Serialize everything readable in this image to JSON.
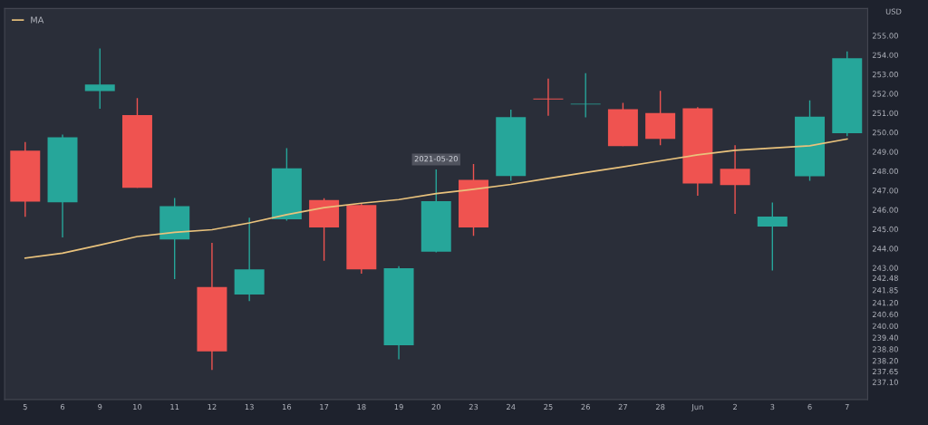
{
  "chart_data": {
    "type": "candlestick",
    "ylabel": "USD",
    "categories": [
      "5",
      "6",
      "9",
      "10",
      "11",
      "12",
      "13",
      "16",
      "17",
      "18",
      "19",
      "20",
      "23",
      "24",
      "25",
      "26",
      "27",
      "28",
      "Jun",
      "2",
      "3",
      "6",
      "7"
    ],
    "ohlc": [
      [
        249.06,
        249.5,
        245.64,
        246.42
      ],
      [
        246.39,
        249.89,
        244.57,
        249.75
      ],
      [
        252.14,
        254.34,
        251.22,
        252.47
      ],
      [
        250.89,
        251.77,
        247.14,
        247.14
      ],
      [
        244.47,
        246.61,
        242.42,
        246.19
      ],
      [
        242.01,
        244.29,
        237.73,
        238.69
      ],
      [
        241.62,
        245.59,
        241.29,
        242.92
      ],
      [
        245.51,
        249.19,
        245.44,
        248.14
      ],
      [
        246.51,
        246.6,
        243.37,
        245.09
      ],
      [
        246.25,
        246.3,
        242.7,
        242.92
      ],
      [
        239.0,
        243.09,
        238.28,
        242.98
      ],
      [
        243.84,
        248.09,
        243.8,
        246.45
      ],
      [
        247.55,
        248.37,
        244.65,
        245.09
      ],
      [
        247.75,
        251.18,
        247.5,
        250.79
      ],
      [
        251.75,
        252.78,
        250.86,
        251.7
      ],
      [
        251.44,
        253.06,
        250.78,
        251.48
      ],
      [
        251.2,
        251.53,
        249.29,
        249.29
      ],
      [
        251.0,
        252.15,
        249.34,
        249.67
      ],
      [
        251.25,
        251.3,
        246.73,
        247.36
      ],
      [
        248.12,
        249.34,
        245.79,
        247.28
      ],
      [
        245.14,
        246.37,
        242.86,
        245.65
      ],
      [
        247.73,
        251.65,
        247.5,
        250.81
      ],
      [
        249.96,
        254.18,
        249.8,
        253.83
      ]
    ],
    "colors": [
      "#ef5350",
      "#26a69a",
      "#26a69a",
      "#ef5350",
      "#26a69a",
      "#ef5350",
      "#26a69a",
      "#26a69a",
      "#ef5350",
      "#ef5350",
      "#26a69a",
      "#26a69a",
      "#ef5350",
      "#26a69a",
      "#ef5350",
      "#26a69a",
      "#ef5350",
      "#ef5350",
      "#ef5350",
      "#ef5350",
      "#26a69a",
      "#26a69a",
      "#26a69a"
    ],
    "series": [
      {
        "name": "MA",
        "type": "line",
        "color": "#e9c27c",
        "values": [
          243.51,
          243.76,
          244.18,
          244.62,
          244.84,
          244.97,
          245.32,
          245.75,
          246.11,
          246.34,
          246.53,
          246.84,
          247.06,
          247.31,
          247.62,
          247.93,
          248.22,
          248.53,
          248.84,
          249.07,
          249.19,
          249.31,
          249.66
        ]
      }
    ],
    "ylim": [
      236.2,
      256.4
    ],
    "yticks": [
      {
        "value": 255,
        "label": "255.00"
      },
      {
        "value": 254,
        "label": "254.00"
      },
      {
        "value": 253,
        "label": "253.00"
      },
      {
        "value": 252,
        "label": "252.00"
      },
      {
        "value": 251,
        "label": "251.00"
      },
      {
        "value": 250,
        "label": "250.00"
      },
      {
        "value": 249,
        "label": "249.00"
      },
      {
        "value": 248,
        "label": "248.00"
      },
      {
        "value": 247,
        "label": "247.00"
      },
      {
        "value": 246,
        "label": "246.00"
      },
      {
        "value": 245,
        "label": "245.00"
      },
      {
        "value": 244,
        "label": "244.00"
      },
      {
        "value": 243,
        "label": "243.00"
      },
      {
        "value": 242.48,
        "label": "242.48"
      },
      {
        "value": 241.85,
        "label": "241.85"
      },
      {
        "value": 241.2,
        "label": "241.20"
      },
      {
        "value": 240.6,
        "label": "240.60"
      },
      {
        "value": 240,
        "label": "240.00"
      },
      {
        "value": 239.4,
        "label": "239.40"
      },
      {
        "value": 238.8,
        "label": "238.80"
      },
      {
        "value": 238.2,
        "label": "238.20"
      },
      {
        "value": 237.65,
        "label": "237.65"
      },
      {
        "value": 237.1,
        "label": "237.10"
      }
    ],
    "annotations": [
      {
        "text": "2021-05-20",
        "x": "20",
        "y": 248.09
      }
    ],
    "legend": "top left",
    "grid": false
  }
}
